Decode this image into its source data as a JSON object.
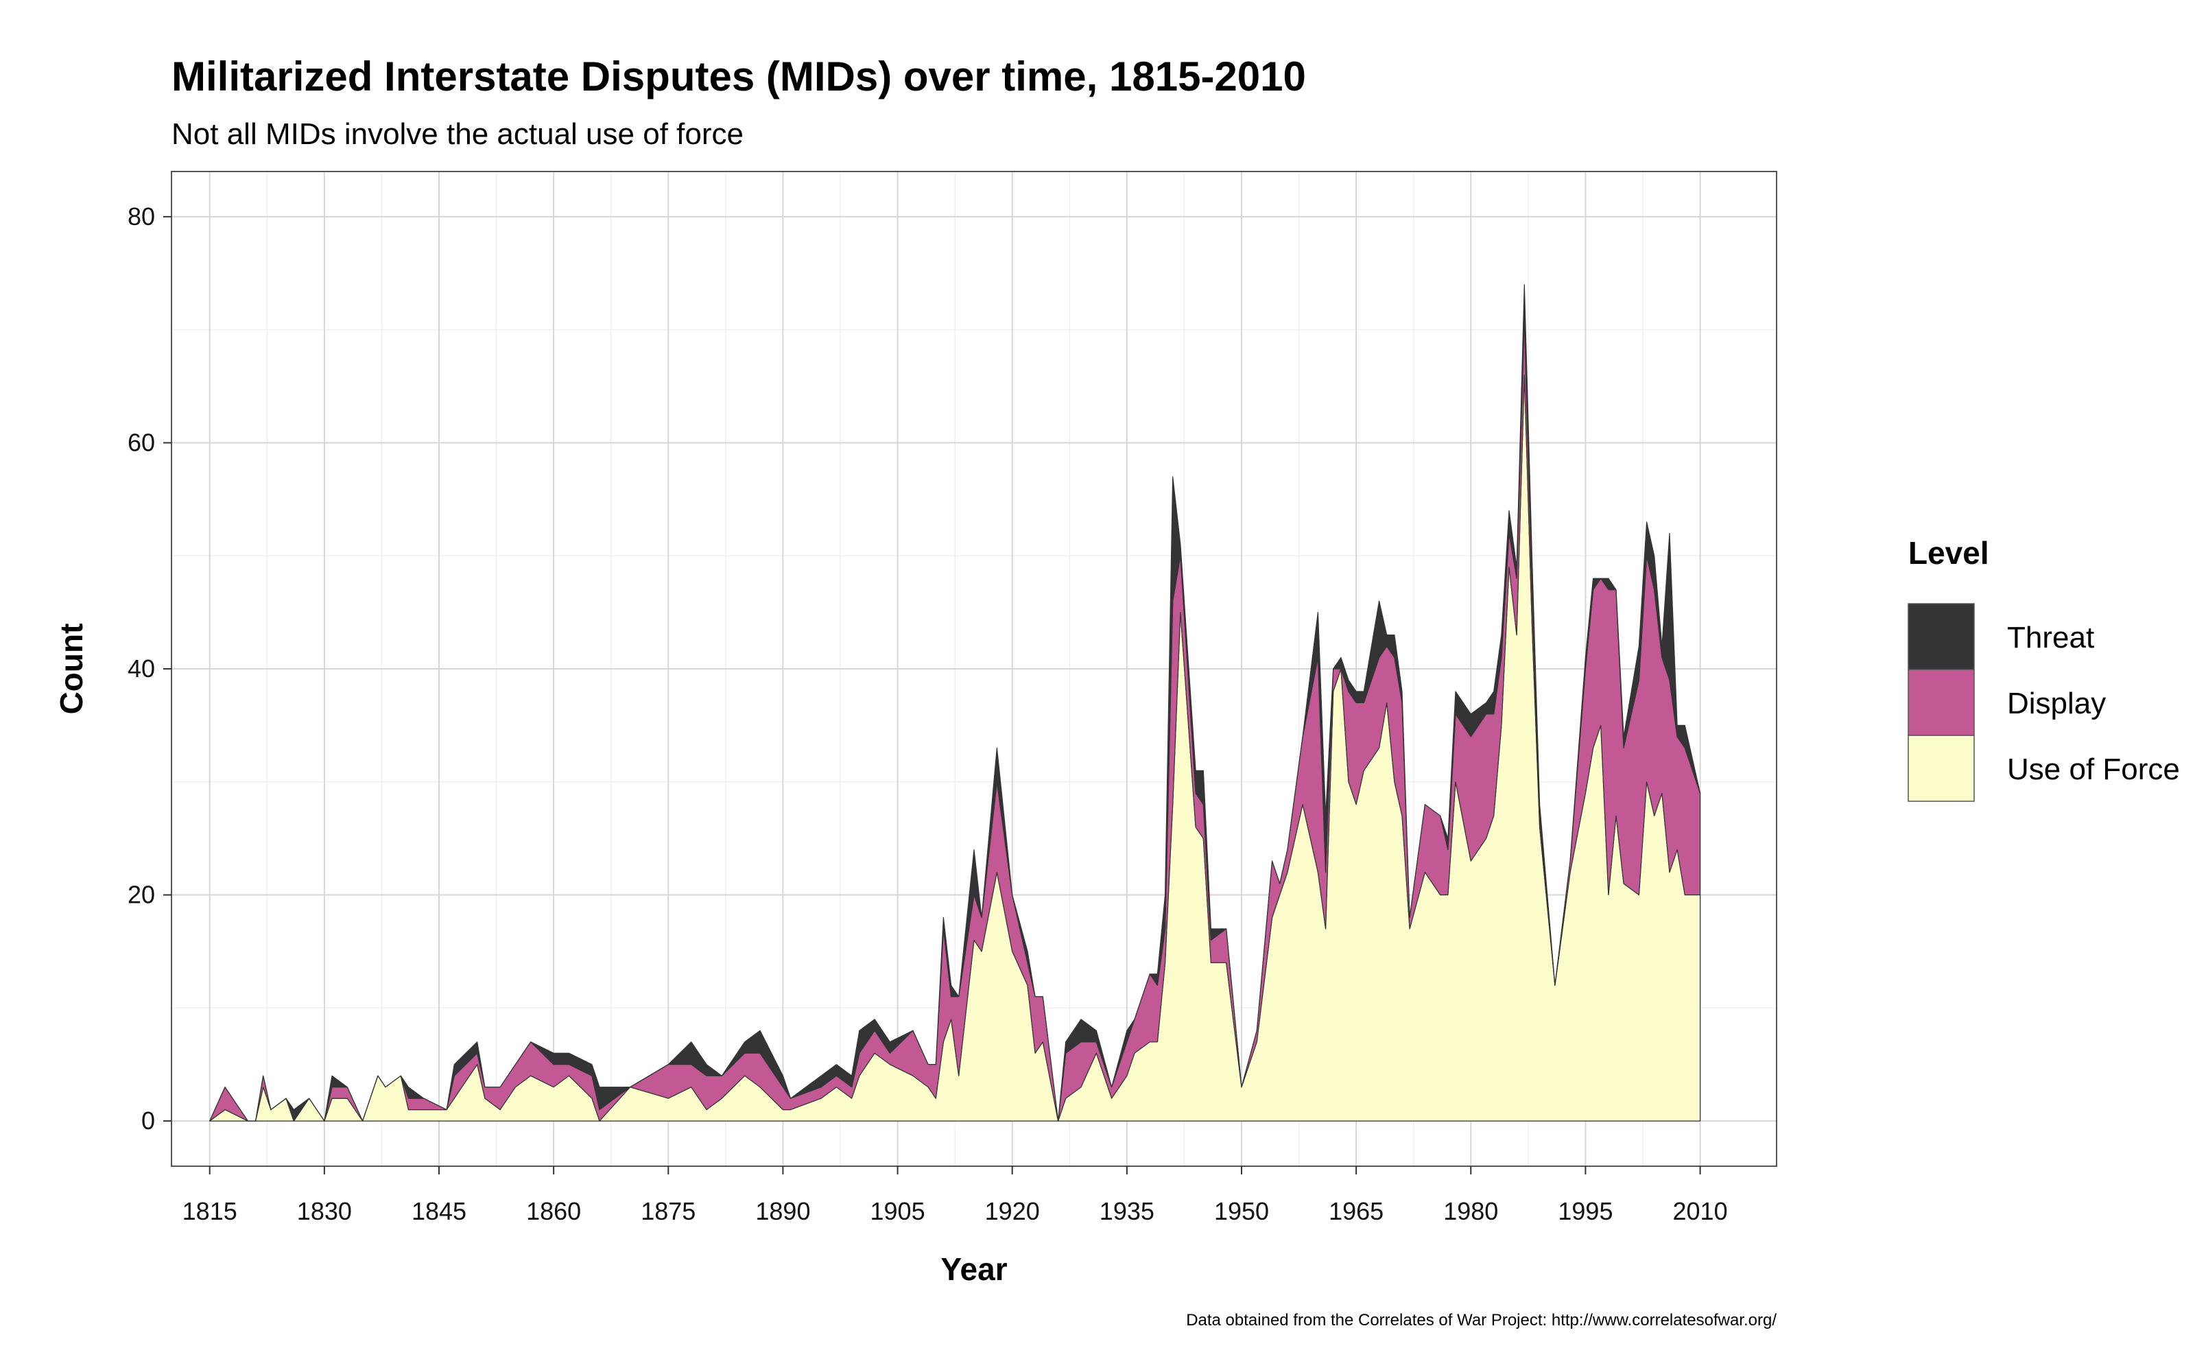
{
  "chart_data": {
    "type": "area",
    "stacked": true,
    "title": "Militarized Interstate Disputes (MIDs) over time, 1815-2010",
    "subtitle": "Not all MIDs involve the actual use of force",
    "xlabel": "Year",
    "ylabel": "Count",
    "caption": "Data obtained from the Correlates of War Project: http://www.correlatesofwar.org/",
    "xlim": [
      1810,
      2020
    ],
    "ylim": [
      -4,
      84
    ],
    "x_ticks": [
      1815,
      1830,
      1845,
      1860,
      1875,
      1890,
      1905,
      1920,
      1935,
      1950,
      1965,
      1980,
      1995,
      2010
    ],
    "y_ticks": [
      0,
      20,
      40,
      60,
      80
    ],
    "grid": true,
    "legend": {
      "title": "Level",
      "position": "right",
      "entries": [
        {
          "name": "Threat",
          "color": "#343336"
        },
        {
          "name": "Display",
          "color": "#c35994"
        },
        {
          "name": "Use of Force",
          "color": "#fdfdcc"
        }
      ]
    },
    "x": [
      1815,
      1817,
      1820,
      1821,
      1822,
      1823,
      1825,
      1826,
      1828,
      1830,
      1831,
      1833,
      1835,
      1837,
      1838,
      1840,
      1841,
      1843,
      1846,
      1847,
      1850,
      1851,
      1853,
      1855,
      1857,
      1860,
      1862,
      1865,
      1866,
      1870,
      1875,
      1878,
      1880,
      1882,
      1885,
      1887,
      1890,
      1891,
      1895,
      1897,
      1899,
      1900,
      1902,
      1904,
      1907,
      1909,
      1910,
      1911,
      1912,
      1913,
      1915,
      1916,
      1918,
      1920,
      1922,
      1923,
      1924,
      1926,
      1927,
      1929,
      1931,
      1933,
      1935,
      1936,
      1938,
      1939,
      1940,
      1941,
      1942,
      1944,
      1945,
      1946,
      1948,
      1950,
      1952,
      1954,
      1955,
      1956,
      1958,
      1960,
      1961,
      1962,
      1963,
      1964,
      1965,
      1966,
      1968,
      1969,
      1970,
      1971,
      1972,
      1974,
      1976,
      1977,
      1978,
      1980,
      1982,
      1983,
      1984,
      1985,
      1986,
      1987,
      1988,
      1989,
      1991,
      1993,
      1995,
      1996,
      1997,
      1998,
      1999,
      2000,
      2002,
      2003,
      2004,
      2005,
      2006,
      2007,
      2008,
      2010
    ],
    "series": [
      {
        "name": "Use of Force",
        "color": "#fdfdcc",
        "values": [
          0,
          1,
          0,
          0,
          3,
          1,
          2,
          0,
          2,
          0,
          2,
          2,
          0,
          4,
          3,
          4,
          1,
          1,
          1,
          2,
          5,
          2,
          1,
          3,
          4,
          3,
          4,
          2,
          0,
          3,
          2,
          3,
          1,
          2,
          4,
          3,
          1,
          1,
          2,
          3,
          2,
          4,
          6,
          5,
          4,
          3,
          2,
          7,
          9,
          4,
          16,
          15,
          22,
          15,
          12,
          6,
          7,
          0,
          2,
          3,
          6,
          2,
          4,
          6,
          7,
          7,
          14,
          28,
          45,
          26,
          25,
          14,
          14,
          3,
          7,
          18,
          20,
          22,
          28,
          22,
          17,
          38,
          40,
          30,
          28,
          31,
          33,
          37,
          30,
          27,
          17,
          22,
          20,
          20,
          30,
          23,
          25,
          27,
          35,
          49,
          43,
          66,
          44,
          26,
          12,
          22,
          29,
          33,
          35,
          20,
          27,
          21,
          20,
          30,
          27,
          29,
          22,
          24,
          20,
          20
        ]
      },
      {
        "name": "Display",
        "color": "#c35994",
        "values": [
          0,
          2,
          0,
          0,
          1,
          0,
          0,
          0,
          0,
          0,
          1,
          1,
          0,
          0,
          0,
          0,
          1,
          1,
          0,
          2,
          1,
          1,
          2,
          2,
          3,
          2,
          1,
          2,
          1,
          0,
          3,
          2,
          3,
          2,
          2,
          3,
          2,
          1,
          1,
          1,
          1,
          2,
          2,
          1,
          4,
          2,
          3,
          10,
          2,
          7,
          4,
          3,
          8,
          5,
          2,
          5,
          4,
          0,
          4,
          4,
          1,
          1,
          3,
          3,
          6,
          5,
          3,
          18,
          5,
          3,
          3,
          2,
          3,
          0,
          1,
          5,
          1,
          2,
          6,
          19,
          5,
          2,
          0,
          8,
          9,
          6,
          8,
          5,
          11,
          10,
          1,
          6,
          7,
          4,
          6,
          11,
          11,
          9,
          6,
          3,
          5,
          5,
          3,
          1,
          0,
          1,
          11,
          14,
          13,
          27,
          20,
          12,
          19,
          20,
          20,
          12,
          17,
          10,
          13,
          9
        ]
      },
      {
        "name": "Threat",
        "color": "#343336",
        "values": [
          0,
          0,
          0,
          0,
          0,
          0,
          0,
          1,
          0,
          0,
          1,
          0,
          0,
          0,
          0,
          0,
          1,
          0,
          0,
          1,
          1,
          0,
          0,
          0,
          0,
          1,
          1,
          1,
          2,
          0,
          0,
          2,
          1,
          0,
          1,
          2,
          1,
          0,
          1,
          1,
          1,
          2,
          1,
          1,
          0,
          0,
          0,
          1,
          1,
          0,
          4,
          0,
          3,
          0,
          1,
          0,
          0,
          0,
          1,
          2,
          1,
          0,
          1,
          0,
          0,
          1,
          3,
          11,
          1,
          2,
          3,
          1,
          0,
          0,
          0,
          0,
          0,
          0,
          0,
          4,
          5,
          0,
          1,
          1,
          1,
          1,
          5,
          1,
          2,
          1,
          0,
          0,
          0,
          1,
          2,
          2,
          1,
          2,
          2,
          2,
          1,
          3,
          3,
          1,
          0,
          0,
          1,
          1,
          0,
          1,
          0,
          1,
          3,
          3,
          3,
          1,
          13,
          1,
          2,
          0
        ]
      }
    ]
  }
}
